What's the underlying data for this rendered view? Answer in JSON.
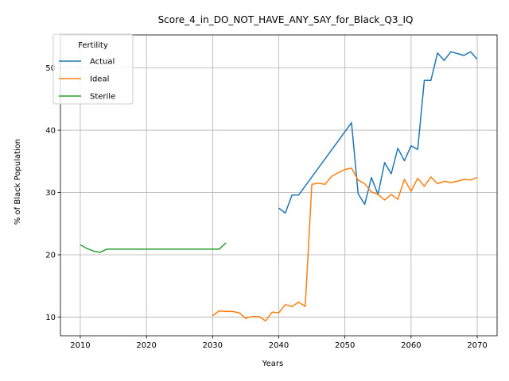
{
  "chart_data": {
    "type": "line",
    "title": "Score_4_in_DO_NOT_HAVE_ANY_SAY_for_Black_Q3_IQ",
    "xlabel": "Years",
    "ylabel": "% of Black Population",
    "xlim": [
      2007,
      2073
    ],
    "ylim": [
      7.0,
      55.3
    ],
    "xticks": [
      2010,
      2020,
      2030,
      2040,
      2050,
      2060,
      2070
    ],
    "yticks": [
      10,
      20,
      30,
      40,
      50
    ],
    "grid": true,
    "legend": {
      "title": "Fertility",
      "placement": "top-left"
    },
    "series": [
      {
        "name": "Actual",
        "color": "#1f77b4",
        "x": [
          2040,
          2041,
          2042,
          2043,
          2051,
          2052,
          2053,
          2054,
          2055,
          2056,
          2057,
          2058,
          2059,
          2060,
          2061,
          2062,
          2063,
          2064,
          2065,
          2066,
          2067,
          2068,
          2069,
          2070
        ],
        "y": [
          27.5,
          26.7,
          29.6,
          29.6,
          41.2,
          29.8,
          28.1,
          32.4,
          29.7,
          34.8,
          33.0,
          37.1,
          35.1,
          37.5,
          36.9,
          48.0,
          48.0,
          52.4,
          51.2,
          52.6,
          52.3,
          52.0,
          52.6,
          51.4
        ]
      },
      {
        "name": "Ideal",
        "color": "#ff7f0e",
        "x": [
          2030,
          2031,
          2032,
          2033,
          2034,
          2035,
          2036,
          2037,
          2038,
          2039,
          2040,
          2041,
          2042,
          2043,
          2044,
          2045,
          2046,
          2047,
          2048,
          2049,
          2050,
          2051,
          2052,
          2053,
          2054,
          2055,
          2056,
          2057,
          2058,
          2059,
          2060,
          2061,
          2062,
          2063,
          2064,
          2065,
          2066,
          2067,
          2068,
          2069,
          2070
        ],
        "y": [
          10.2,
          11.0,
          10.9,
          10.9,
          10.7,
          9.8,
          10.1,
          10.1,
          9.4,
          10.8,
          10.7,
          12.0,
          11.7,
          12.4,
          11.7,
          31.3,
          31.5,
          31.3,
          32.6,
          33.2,
          33.7,
          33.9,
          32.0,
          31.4,
          30.1,
          29.7,
          28.8,
          29.7,
          28.9,
          32.1,
          30.2,
          32.3,
          31.0,
          32.5,
          31.4,
          31.8,
          31.6,
          31.8,
          32.1,
          32.0,
          32.4
        ]
      },
      {
        "name": "Sterile",
        "color": "#2ca02c",
        "x": [
          2010,
          2011,
          2012,
          2013,
          2014,
          2015,
          2016,
          2017,
          2018,
          2019,
          2020,
          2021,
          2022,
          2023,
          2024,
          2025,
          2026,
          2027,
          2028,
          2029,
          2030,
          2031,
          2032
        ],
        "y": [
          21.6,
          21.0,
          20.6,
          20.4,
          20.9,
          20.9,
          20.9,
          20.9,
          20.9,
          20.9,
          20.9,
          20.9,
          20.9,
          20.9,
          20.9,
          20.9,
          20.9,
          20.9,
          20.9,
          20.9,
          20.9,
          20.9,
          21.9
        ]
      }
    ]
  }
}
